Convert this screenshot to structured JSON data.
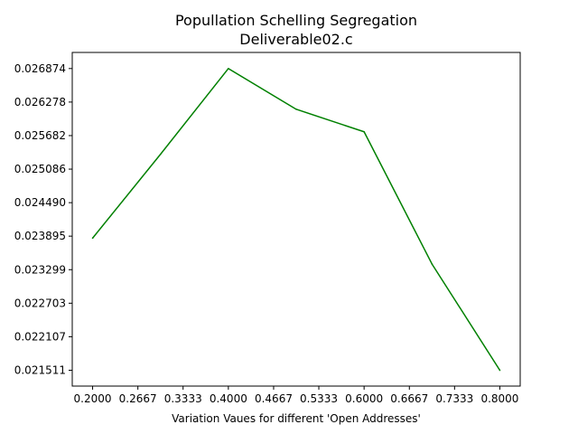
{
  "chart_data": {
    "type": "line",
    "title": "Popullation Schelling Segregation",
    "subtitle": "Deliverable02.c",
    "xlabel": "Variation Vaues for different 'Open Addresses'",
    "ylabel": "",
    "x": [
      0.2,
      0.3,
      0.4,
      0.5,
      0.6,
      0.7,
      0.8
    ],
    "series": [
      {
        "values": [
          0.02386,
          0.02535,
          0.026874,
          0.02615,
          0.02575,
          0.0234,
          0.021511
        ],
        "color": "#008000"
      }
    ],
    "xlim": [
      0.17,
      0.83
    ],
    "ylim": [
      0.02123,
      0.02716
    ],
    "xticks": [
      "0.2000",
      "0.2667",
      "0.3333",
      "0.4000",
      "0.4667",
      "0.5333",
      "0.6000",
      "0.6667",
      "0.7333",
      "0.8000"
    ],
    "yticks": [
      "0.021511",
      "0.022107",
      "0.022703",
      "0.023299",
      "0.023895",
      "0.024490",
      "0.025086",
      "0.025682",
      "0.026278",
      "0.026874"
    ],
    "grid": false,
    "legend": "none"
  }
}
